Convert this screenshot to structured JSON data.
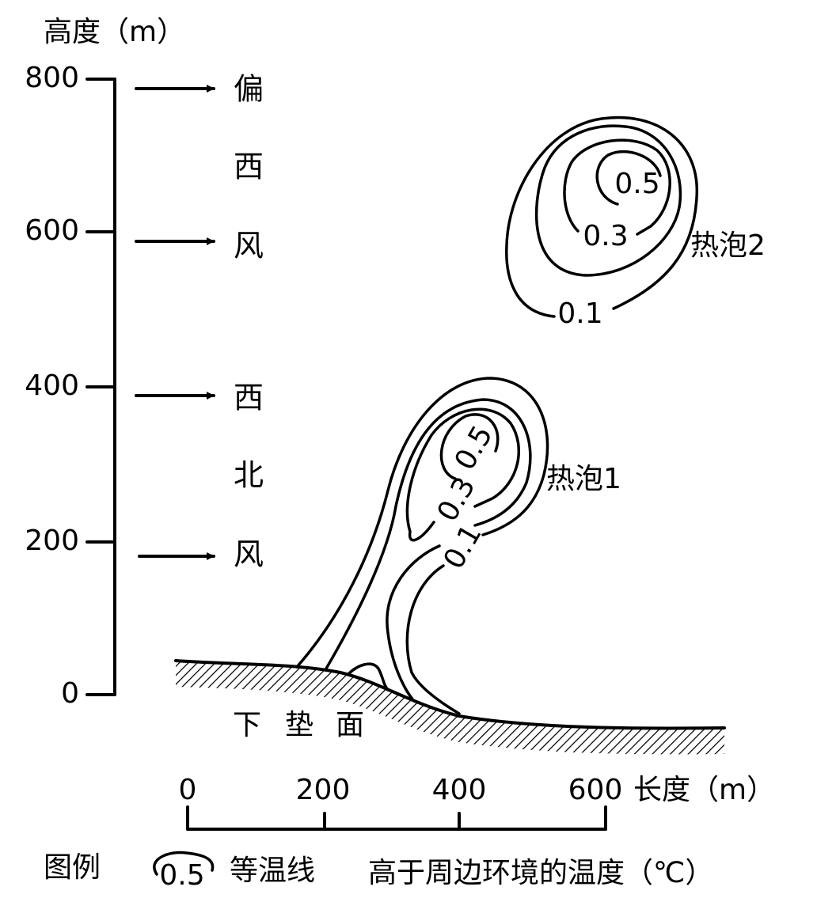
{
  "y_axis": {
    "title": "高度（m）",
    "ticks": [
      800,
      600,
      400,
      200,
      0
    ]
  },
  "wind": {
    "upper": [
      "偏",
      "西",
      "风"
    ],
    "lower": [
      "西",
      "北",
      "风"
    ]
  },
  "thermals": [
    {
      "label": "热泡2",
      "isotherms": [
        "0.5",
        "0.3",
        "0.1"
      ]
    },
    {
      "label": "热泡1",
      "isotherms": [
        "0.5",
        "0.3",
        "0.1"
      ]
    }
  ],
  "surface": [
    "下",
    "垫",
    "面"
  ],
  "x_axis": {
    "title": "长度（m）",
    "ticks": [
      0,
      200,
      400,
      600
    ]
  },
  "legend": {
    "title": "图例",
    "sample": "0.5",
    "isotherm": "等温线",
    "description": "高于周边环境的温度（℃）"
  }
}
